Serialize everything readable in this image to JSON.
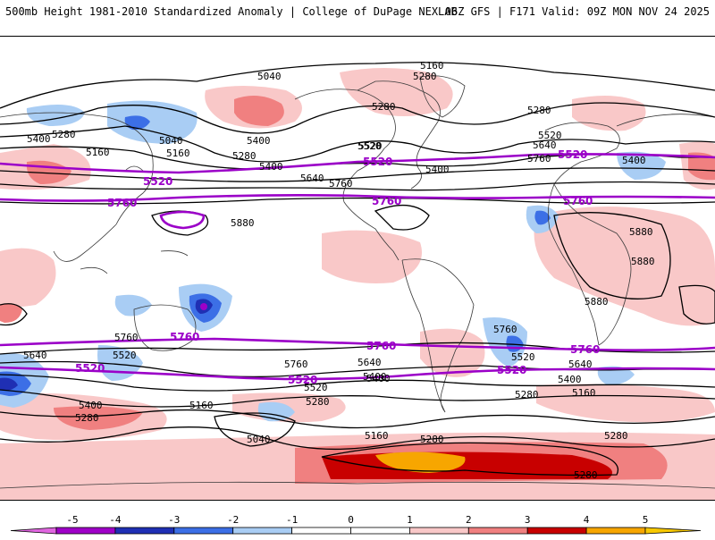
{
  "header": {
    "title": "500mb Height 1981-2010 Standardized Anomaly | College of DuPage NEXLAB",
    "run_info": "06Z GFS | F171 Valid: 09Z MON NOV 24 2025"
  },
  "colors": {
    "contour_black": "#000000",
    "contour_purple": "#9b00c8",
    "land": "#ffffff"
  },
  "colorbar": {
    "ticks": [
      "-5",
      "-4",
      "-3",
      "-2",
      "-1",
      "0",
      "1",
      "2",
      "3",
      "4",
      "5"
    ],
    "bins": [
      {
        "from": -5,
        "to": -4,
        "color": "#9f00c8"
      },
      {
        "from": -4,
        "to": -3,
        "color": "#1f2fb4"
      },
      {
        "from": -3,
        "to": -2,
        "color": "#3c6fe6"
      },
      {
        "from": -2,
        "to": -1,
        "color": "#a9cdf4"
      },
      {
        "from": -1,
        "to": 0,
        "color": "#ffffff"
      },
      {
        "from": 0,
        "to": 1,
        "color": "#ffffff"
      },
      {
        "from": 1,
        "to": 2,
        "color": "#f9c8c8"
      },
      {
        "from": 2,
        "to": 3,
        "color": "#f08080"
      },
      {
        "from": 3,
        "to": 4,
        "color": "#c80000"
      },
      {
        "from": 4,
        "to": 5,
        "color": "#f7a600"
      }
    ],
    "below_color": "#e066e0",
    "above_color": "#f7c800"
  },
  "contour_labels_black": [
    "5040",
    "5160",
    "5280",
    "5280",
    "5400",
    "5400",
    "5280",
    "5160",
    "5040",
    "5280",
    "5400",
    "5400",
    "5640",
    "5760",
    "5520",
    "5400",
    "5520",
    "5640",
    "5760",
    "5280",
    "5160",
    "5880",
    "5880",
    "5880",
    "5880",
    "5760",
    "5640",
    "5520",
    "5400",
    "5280",
    "5520",
    "5760",
    "5640",
    "5520",
    "5400",
    "5280",
    "5160",
    "5280",
    "5400",
    "5640",
    "5760",
    "5160",
    "5040",
    "5160",
    "5280",
    "5280",
    "5280",
    "5400",
    "5520"
  ],
  "contour_labels_purple": [
    "5520",
    "5760",
    "5520",
    "5760",
    "5520",
    "5760",
    "5760",
    "5520",
    "5520",
    "5760",
    "5760",
    "5520"
  ]
}
